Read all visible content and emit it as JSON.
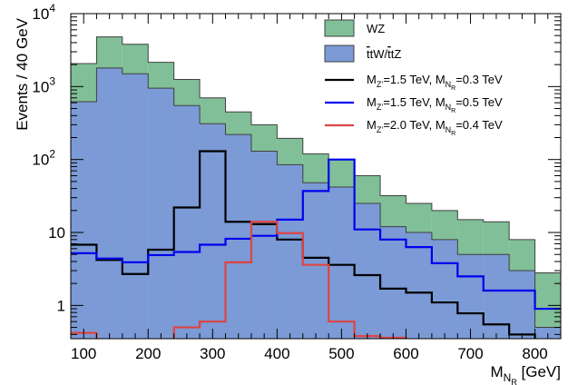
{
  "chart_data": {
    "type": "histogram",
    "y_scale": "log",
    "xlim": [
      80,
      840
    ],
    "ylim": [
      0.35,
      10000
    ],
    "bin_edges": [
      80,
      120,
      160,
      200,
      240,
      280,
      320,
      360,
      400,
      440,
      480,
      520,
      560,
      600,
      640,
      680,
      720,
      760,
      800,
      840
    ],
    "x_ticks": [
      {
        "value": 100,
        "label": "100"
      },
      {
        "value": 200,
        "label": "200"
      },
      {
        "value": 300,
        "label": "300"
      },
      {
        "value": 400,
        "label": "400"
      },
      {
        "value": 500,
        "label": "500"
      },
      {
        "value": 600,
        "label": "600"
      },
      {
        "value": 700,
        "label": "700"
      },
      {
        "value": 800,
        "label": "800"
      }
    ],
    "y_ticks": [
      {
        "value": 1,
        "label": "1"
      },
      {
        "value": 10,
        "label": "10"
      },
      {
        "value": 100,
        "base": "10",
        "exp": "2"
      },
      {
        "value": 1000,
        "base": "10",
        "exp": "3"
      },
      {
        "value": 10000,
        "base": "10",
        "exp": "4"
      }
    ],
    "xlabel": {
      "main": "M",
      "sub1": "N",
      "sub2": "R",
      "unit": " [GeV]"
    },
    "ylabel": "Events / 40 GeV",
    "legend_position": "top-right",
    "stacked_series": [
      {
        "name": "ttW/ttZ",
        "legend_parts": [
          "t",
          "tW/",
          "t",
          "tZ"
        ],
        "color": "#7b9ad6",
        "values": [
          620,
          1800,
          1500,
          950,
          550,
          310,
          220,
          130,
          85,
          48,
          42,
          25,
          12,
          10,
          8,
          5,
          5,
          3,
          0.5
        ]
      },
      {
        "name": "WZ",
        "legend_parts": [
          "WZ"
        ],
        "color": "#80bf97",
        "values": [
          1450,
          3000,
          2300,
          1200,
          700,
          390,
          230,
          170,
          110,
          72,
          58,
          35,
          20,
          15,
          12,
          10,
          9,
          5,
          2.3
        ]
      }
    ],
    "line_series": [
      {
        "legend_values": [
          "1.5 TeV",
          "0.3 TeV"
        ],
        "color": "#000000",
        "values": [
          6.8,
          4.2,
          2.7,
          5.8,
          22,
          130,
          14,
          13,
          8,
          4.5,
          3.6,
          2.6,
          1.7,
          1.5,
          1.1,
          0.78,
          0.55,
          0.4,
          0.28
        ]
      },
      {
        "legend_values": [
          "1.5 TeV",
          "0.5 TeV"
        ],
        "color": "#0000ee",
        "values": [
          5.2,
          4.4,
          3.9,
          4.9,
          5.4,
          6.8,
          8.2,
          9,
          15,
          37,
          100,
          11,
          8,
          6.3,
          3.8,
          2.5,
          1.6,
          1.6,
          0.9
        ]
      },
      {
        "legend_values": [
          "2.0 TeV",
          "0.4 TeV"
        ],
        "color": "#dd4444",
        "values": [
          0.42,
          0.05,
          0.05,
          0.05,
          0.5,
          0.6,
          3.9,
          14,
          9.8,
          3.6,
          0.6,
          0.38,
          0.36,
          0.05,
          0.05,
          0.05,
          0.05,
          0.05,
          0.05
        ]
      }
    ]
  }
}
